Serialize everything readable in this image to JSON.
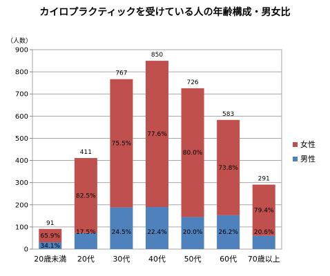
{
  "chart_data": {
    "type": "bar",
    "stacked": true,
    "title": "カイロプラクティックを受けている人の年齢構成・男女比",
    "ylabel": "（人数）",
    "ylim": [
      0,
      900
    ],
    "yticks": [
      0,
      100,
      200,
      300,
      400,
      500,
      600,
      700,
      800,
      900
    ],
    "grid": true,
    "legend_position": "right",
    "categories": [
      "20歳未満",
      "20代",
      "30代",
      "40代",
      "50代",
      "60代",
      "70歳以上"
    ],
    "totals": [
      91,
      411,
      767,
      850,
      726,
      583,
      291
    ],
    "series": [
      {
        "name": "男性",
        "color": "#4f81bd",
        "values": [
          31,
          72,
          188,
          190,
          145,
          153,
          60
        ],
        "percent_labels": [
          "34.1%",
          "17.5%",
          "24.5%",
          "22.4%",
          "20.0%",
          "26.2%",
          "20.6%"
        ]
      },
      {
        "name": "女性",
        "color": "#c0504d",
        "values": [
          60,
          339,
          579,
          660,
          581,
          430,
          231
        ],
        "percent_labels": [
          "65.9%",
          "82.5%",
          "75.5%",
          "77.6%",
          "80.0%",
          "73.8%",
          "79.4%"
        ]
      }
    ]
  }
}
